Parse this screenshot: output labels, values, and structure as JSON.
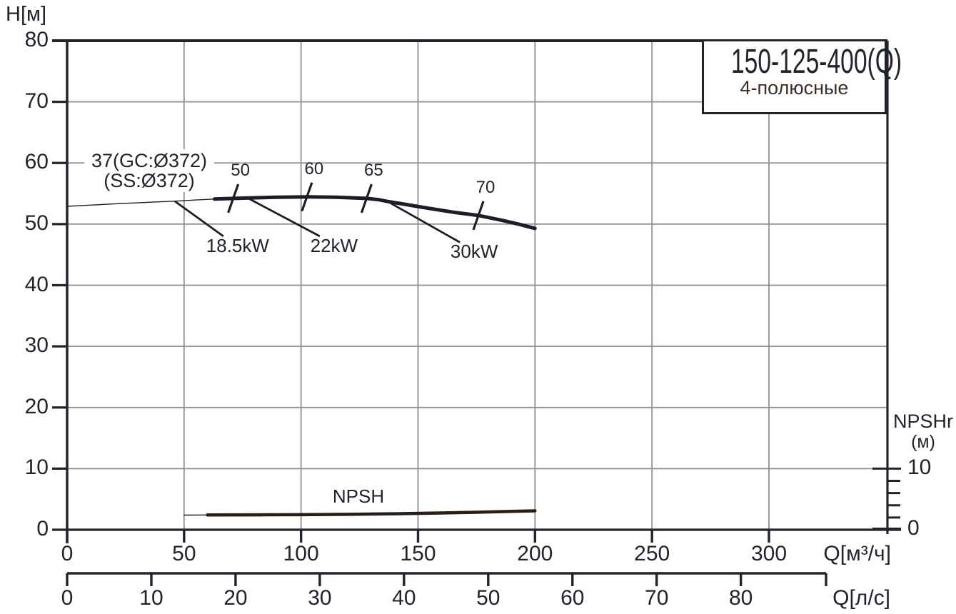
{
  "colors": {
    "axis": "#20242c",
    "grid": "#8e8f92",
    "head_curve": "#1b1e26",
    "npsh_curve": "#2a1d15",
    "text": "#20242c",
    "subtitle_text": "#3a2e27"
  },
  "h_axis": {
    "title": "H[м]",
    "ticks": [
      80,
      70,
      60,
      50,
      40,
      30,
      20,
      10,
      0
    ],
    "gridlines": [
      70,
      60,
      50,
      40,
      30,
      20,
      10
    ],
    "range": [
      0,
      80
    ]
  },
  "q_m3h_axis": {
    "unit_label": "Q[м³/ч]",
    "ticks": [
      0,
      50,
      100,
      150,
      200,
      250,
      300
    ],
    "gridlines": [
      50,
      100,
      150,
      200,
      250,
      300
    ]
  },
  "q_ls_axis": {
    "unit_label": "Q[л/с]",
    "ticks": [
      0,
      10,
      20,
      30,
      40,
      50,
      60,
      70,
      80
    ]
  },
  "npshr_axis": {
    "title": "NPSHr",
    "unit": "(м)",
    "labeled_ticks": [
      10,
      0
    ],
    "minor_ticks": [
      2,
      4,
      6,
      8
    ]
  },
  "title_box": {
    "model": "150-125-400(Q)",
    "poles": "4-полюсные"
  },
  "impeller_label": {
    "line1": "37(GC:Ø372)",
    "line2": "(SS:Ø372)"
  },
  "npsh_curve_label": "NPSH",
  "chart_data": {
    "type": "line",
    "title": "150-125-400(Q) 4-полюсные",
    "xlabel": "Q[м³/ч]",
    "x2label": "Q[л/с]",
    "ylabel": "H[м]",
    "y2label": "NPSHr (м)",
    "xlim": [
      0,
      350
    ],
    "ylim": [
      0,
      80
    ],
    "x2lim_ls": [
      0,
      90
    ],
    "grid": true,
    "series": [
      {
        "name": "head_thin",
        "style": "thin",
        "points": [
          [
            0,
            52.9
          ],
          [
            20,
            53.3
          ],
          [
            40,
            53.65
          ],
          [
            46,
            53.75
          ],
          [
            55,
            53.95
          ],
          [
            63,
            54.1
          ]
        ]
      },
      {
        "name": "head_main",
        "style": "thick",
        "points": [
          [
            63,
            54.1
          ],
          [
            75,
            54.25
          ],
          [
            90,
            54.4
          ],
          [
            103,
            54.45
          ],
          [
            115,
            54.4
          ],
          [
            122,
            54.3
          ],
          [
            128,
            54.2
          ],
          [
            133,
            54.0
          ],
          [
            137,
            53.7
          ],
          [
            145,
            53.2
          ],
          [
            155,
            52.55
          ],
          [
            165,
            51.95
          ],
          [
            176,
            51.4
          ],
          [
            185,
            50.7
          ],
          [
            193,
            50.0
          ],
          [
            200,
            49.3
          ]
        ]
      },
      {
        "name": "npsh_thin",
        "style": "thin",
        "points": [
          [
            50,
            2.4
          ],
          [
            60,
            2.42
          ]
        ]
      },
      {
        "name": "npsh_main",
        "style": "thick",
        "points": [
          [
            60,
            2.42
          ],
          [
            80,
            2.44
          ],
          [
            100,
            2.46
          ],
          [
            120,
            2.52
          ],
          [
            140,
            2.62
          ],
          [
            160,
            2.74
          ],
          [
            175,
            2.86
          ],
          [
            190,
            3.0
          ],
          [
            200,
            3.1
          ]
        ]
      }
    ],
    "efficiency_marks": [
      {
        "label": "50",
        "q": 71,
        "h": 54.2
      },
      {
        "label": "60",
        "q": 102.5,
        "h": 54.45
      },
      {
        "label": "65",
        "q": 128,
        "h": 54.2
      },
      {
        "label": "70",
        "q": 175.8,
        "h": 51.4
      }
    ],
    "power_marks": [
      {
        "label": "18.5kW",
        "attach_q": 46,
        "attach_h": 53.75,
        "text_q": 72.9,
        "text_h": 46.5
      },
      {
        "label": "22kW",
        "attach_q": 77.5,
        "attach_h": 54.2,
        "text_q": 114.1,
        "text_h": 46.5
      },
      {
        "label": "30kW",
        "attach_q": 137,
        "attach_h": 53.7,
        "text_q": 174,
        "text_h": 45.5
      }
    ]
  }
}
